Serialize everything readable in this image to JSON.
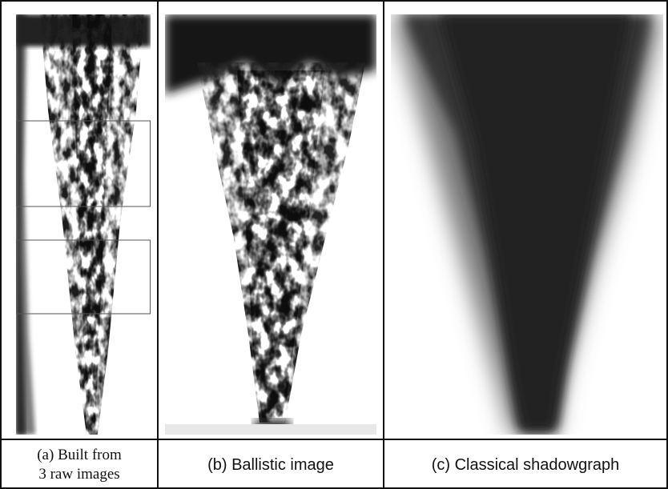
{
  "figure": {
    "panels": [
      {
        "caption_line1": "(a) Built from",
        "caption_line2": "3 raw images"
      },
      {
        "caption": "(b) Ballistic image"
      },
      {
        "caption": "(c) Classical shadowgraph"
      }
    ]
  }
}
